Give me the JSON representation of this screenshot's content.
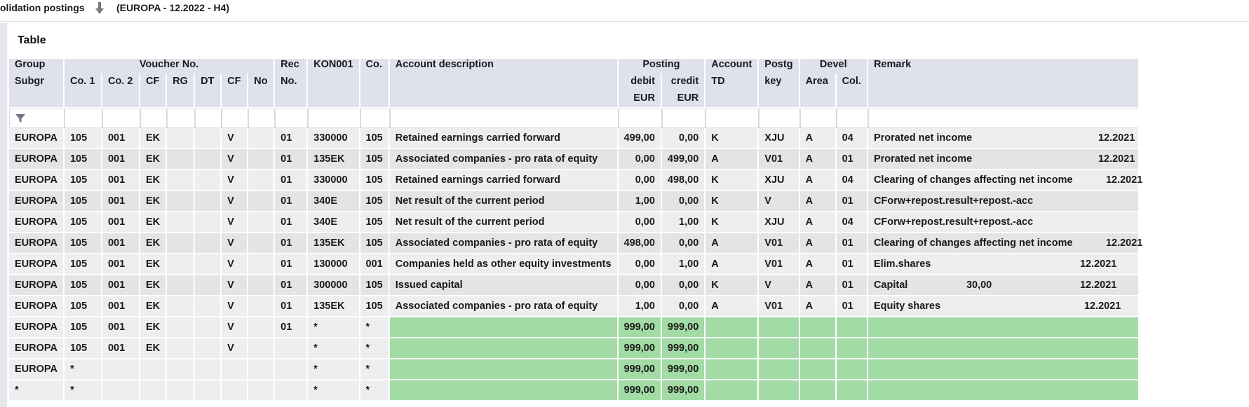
{
  "header": {
    "title": "olidation postings",
    "context": "(EUROPA - 12.2022 - H4)"
  },
  "panel": {
    "title": "Table"
  },
  "columns": {
    "group": "Group",
    "subgr": "Subgr",
    "voucher_no": "Voucher No.",
    "co1": "Co. 1",
    "co2": "Co. 2",
    "cf": "CF",
    "rg": "RG",
    "dt": "DT",
    "cf2": "CF",
    "no": "No",
    "rec": "Rec",
    "rec_no": "No.",
    "kon001": "KON001",
    "co": "Co.",
    "account_description": "Account description",
    "posting": "Posting",
    "debit": "debit",
    "credit": "credit",
    "eur_debit": "EUR",
    "eur_credit": "EUR",
    "account": "Account",
    "td": "TD",
    "postg": "Postg",
    "key": "key",
    "devel": "Devel",
    "area": "Area",
    "col": "Col.",
    "remark": "Remark"
  },
  "rows": [
    {
      "group": "EUROPA",
      "co1": "105",
      "co2": "001",
      "cf": "EK",
      "rg": "",
      "dt": "",
      "cf2": "V",
      "no": "",
      "rec": "01",
      "kon": "330000",
      "co": "105",
      "desc": "Retained earnings carried forward",
      "debit": "499,00",
      "credit": "0,00",
      "td": "K",
      "key": "XJU",
      "area": "A",
      "col": "04",
      "remark": "Prorated net income",
      "remark_value": "",
      "remark_date": "12.2021",
      "shade": "norm"
    },
    {
      "group": "EUROPA",
      "co1": "105",
      "co2": "001",
      "cf": "EK",
      "rg": "",
      "dt": "",
      "cf2": "V",
      "no": "",
      "rec": "01",
      "kon": "135EK",
      "co": "105",
      "desc": "Associated companies - pro rata of equity",
      "debit": "0,00",
      "credit": "499,00",
      "td": "A",
      "key": "V01",
      "area": "A",
      "col": "01",
      "remark": "Prorated net income",
      "remark_value": "",
      "remark_date": "12.2021",
      "shade": "alt"
    },
    {
      "group": "EUROPA",
      "co1": "105",
      "co2": "001",
      "cf": "EK",
      "rg": "",
      "dt": "",
      "cf2": "V",
      "no": "",
      "rec": "01",
      "kon": "330000",
      "co": "105",
      "desc": "Retained earnings carried forward",
      "debit": "0,00",
      "credit": "498,00",
      "td": "K",
      "key": "XJU",
      "area": "A",
      "col": "04",
      "remark": "Clearing of changes affecting net income",
      "remark_value": "",
      "remark_date": "12.2021",
      "shade": "norm"
    },
    {
      "group": "EUROPA",
      "co1": "105",
      "co2": "001",
      "cf": "EK",
      "rg": "",
      "dt": "",
      "cf2": "V",
      "no": "",
      "rec": "01",
      "kon": "340E",
      "co": "105",
      "desc": "Net result of the current period",
      "debit": "1,00",
      "credit": "0,00",
      "td": "K",
      "key": "V",
      "area": "A",
      "col": "01",
      "remark": "CForw+repost.result+repost.-acc",
      "remark_value": "",
      "remark_date": "",
      "shade": "alt"
    },
    {
      "group": "EUROPA",
      "co1": "105",
      "co2": "001",
      "cf": "EK",
      "rg": "",
      "dt": "",
      "cf2": "V",
      "no": "",
      "rec": "01",
      "kon": "340E",
      "co": "105",
      "desc": "Net result of the current period",
      "debit": "0,00",
      "credit": "1,00",
      "td": "K",
      "key": "XJU",
      "area": "A",
      "col": "04",
      "remark": "CForw+repost.result+repost.-acc",
      "remark_value": "",
      "remark_date": "",
      "shade": "norm"
    },
    {
      "group": "EUROPA",
      "co1": "105",
      "co2": "001",
      "cf": "EK",
      "rg": "",
      "dt": "",
      "cf2": "V",
      "no": "",
      "rec": "01",
      "kon": "135EK",
      "co": "105",
      "desc": "Associated companies - pro rata of equity",
      "debit": "498,00",
      "credit": "0,00",
      "td": "A",
      "key": "V01",
      "area": "A",
      "col": "01",
      "remark": "Clearing of changes affecting net income",
      "remark_value": "",
      "remark_date": "12.2021",
      "shade": "alt"
    },
    {
      "group": "EUROPA",
      "co1": "105",
      "co2": "001",
      "cf": "EK",
      "rg": "",
      "dt": "",
      "cf2": "V",
      "no": "",
      "rec": "01",
      "kon": "130000",
      "co": "001",
      "desc": "Companies held as other equity investments",
      "debit": "0,00",
      "credit": "1,00",
      "td": "A",
      "key": "V01",
      "area": "A",
      "col": "01",
      "remark": "Elim.shares",
      "remark_value": "",
      "remark_date": "12.2021",
      "shade": "norm"
    },
    {
      "group": "EUROPA",
      "co1": "105",
      "co2": "001",
      "cf": "EK",
      "rg": "",
      "dt": "",
      "cf2": "V",
      "no": "",
      "rec": "01",
      "kon": "300000",
      "co": "105",
      "desc": "Issued capital",
      "debit": "0,00",
      "credit": "0,00",
      "td": "K",
      "key": "V",
      "area": "A",
      "col": "01",
      "remark": "Capital",
      "remark_value": "30,00",
      "remark_date": "12.2021",
      "shade": "alt"
    },
    {
      "group": "EUROPA",
      "co1": "105",
      "co2": "001",
      "cf": "EK",
      "rg": "",
      "dt": "",
      "cf2": "V",
      "no": "",
      "rec": "01",
      "kon": "135EK",
      "co": "105",
      "desc": "Associated companies - pro rata of equity",
      "debit": "1,00",
      "credit": "0,00",
      "td": "A",
      "key": "V01",
      "area": "A",
      "col": "01",
      "remark": "Equity shares",
      "remark_value": "",
      "remark_date": "12.2021",
      "shade": "norm"
    },
    {
      "group": "EUROPA",
      "co1": "105",
      "co2": "001",
      "cf": "EK",
      "rg": "",
      "dt": "",
      "cf2": "V",
      "no": "",
      "rec": "01",
      "kon": "*",
      "co": "*",
      "desc": "",
      "debit": "999,00",
      "credit": "999,00",
      "td": "",
      "key": "",
      "area": "",
      "col": "",
      "remark": "",
      "remark_value": "",
      "remark_date": "",
      "shade": "total"
    },
    {
      "group": "EUROPA",
      "co1": "105",
      "co2": "001",
      "cf": "EK",
      "rg": "",
      "dt": "",
      "cf2": "V",
      "no": "",
      "rec": "",
      "kon": "*",
      "co": "*",
      "desc": "",
      "debit": "999,00",
      "credit": "999,00",
      "td": "",
      "key": "",
      "area": "",
      "col": "",
      "remark": "",
      "remark_value": "",
      "remark_date": "",
      "shade": "total"
    },
    {
      "group": "EUROPA",
      "co1": "*",
      "co2": "",
      "cf": "",
      "rg": "",
      "dt": "",
      "cf2": "",
      "no": "",
      "rec": "",
      "kon": "*",
      "co": "*",
      "desc": "",
      "debit": "999,00",
      "credit": "999,00",
      "td": "",
      "key": "",
      "area": "",
      "col": "",
      "remark": "",
      "remark_value": "",
      "remark_date": "",
      "shade": "total"
    },
    {
      "group": "*",
      "co1": "*",
      "co2": "",
      "cf": "",
      "rg": "",
      "dt": "",
      "cf2": "",
      "no": "",
      "rec": "",
      "kon": "*",
      "co": "*",
      "desc": "",
      "debit": "999,00",
      "credit": "999,00",
      "td": "",
      "key": "",
      "area": "",
      "col": "",
      "remark": "",
      "remark_value": "",
      "remark_date": "",
      "shade": "total"
    }
  ],
  "colors": {
    "header_bg": "#dfe2ec",
    "total_green": "#a2dba4",
    "row_light": "#eeeeee",
    "row_dark": "#e4e4e4"
  },
  "icons": {
    "title_arrow": "arrow-down-icon",
    "filter": "filter-icon"
  }
}
